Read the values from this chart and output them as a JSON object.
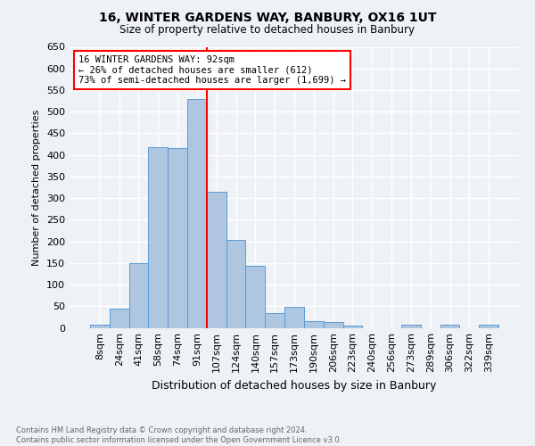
{
  "title1": "16, WINTER GARDENS WAY, BANBURY, OX16 1UT",
  "title2": "Size of property relative to detached houses in Banbury",
  "xlabel": "Distribution of detached houses by size in Banbury",
  "ylabel": "Number of detached properties",
  "categories": [
    "8sqm",
    "24sqm",
    "41sqm",
    "58sqm",
    "74sqm",
    "91sqm",
    "107sqm",
    "124sqm",
    "140sqm",
    "157sqm",
    "173sqm",
    "190sqm",
    "206sqm",
    "223sqm",
    "240sqm",
    "256sqm",
    "273sqm",
    "289sqm",
    "306sqm",
    "322sqm",
    "339sqm"
  ],
  "values": [
    8,
    44,
    150,
    418,
    415,
    530,
    314,
    204,
    144,
    35,
    48,
    15,
    14,
    5,
    0,
    0,
    7,
    0,
    8,
    0,
    8
  ],
  "bar_color": "#aec6e0",
  "bar_edge_color": "#5b9bd5",
  "bar_width": 1.0,
  "vline_x_idx": 5,
  "vline_color": "red",
  "annotation_text": "16 WINTER GARDENS WAY: 92sqm\n← 26% of detached houses are smaller (612)\n73% of semi-detached houses are larger (1,699) →",
  "annotation_box_color": "white",
  "annotation_box_edge_color": "red",
  "ylim": [
    0,
    650
  ],
  "yticks": [
    0,
    50,
    100,
    150,
    200,
    250,
    300,
    350,
    400,
    450,
    500,
    550,
    600,
    650
  ],
  "footnote": "Contains HM Land Registry data © Crown copyright and database right 2024.\nContains public sector information licensed under the Open Government Licence v3.0.",
  "bg_color": "#eef2f7",
  "grid_color": "white"
}
